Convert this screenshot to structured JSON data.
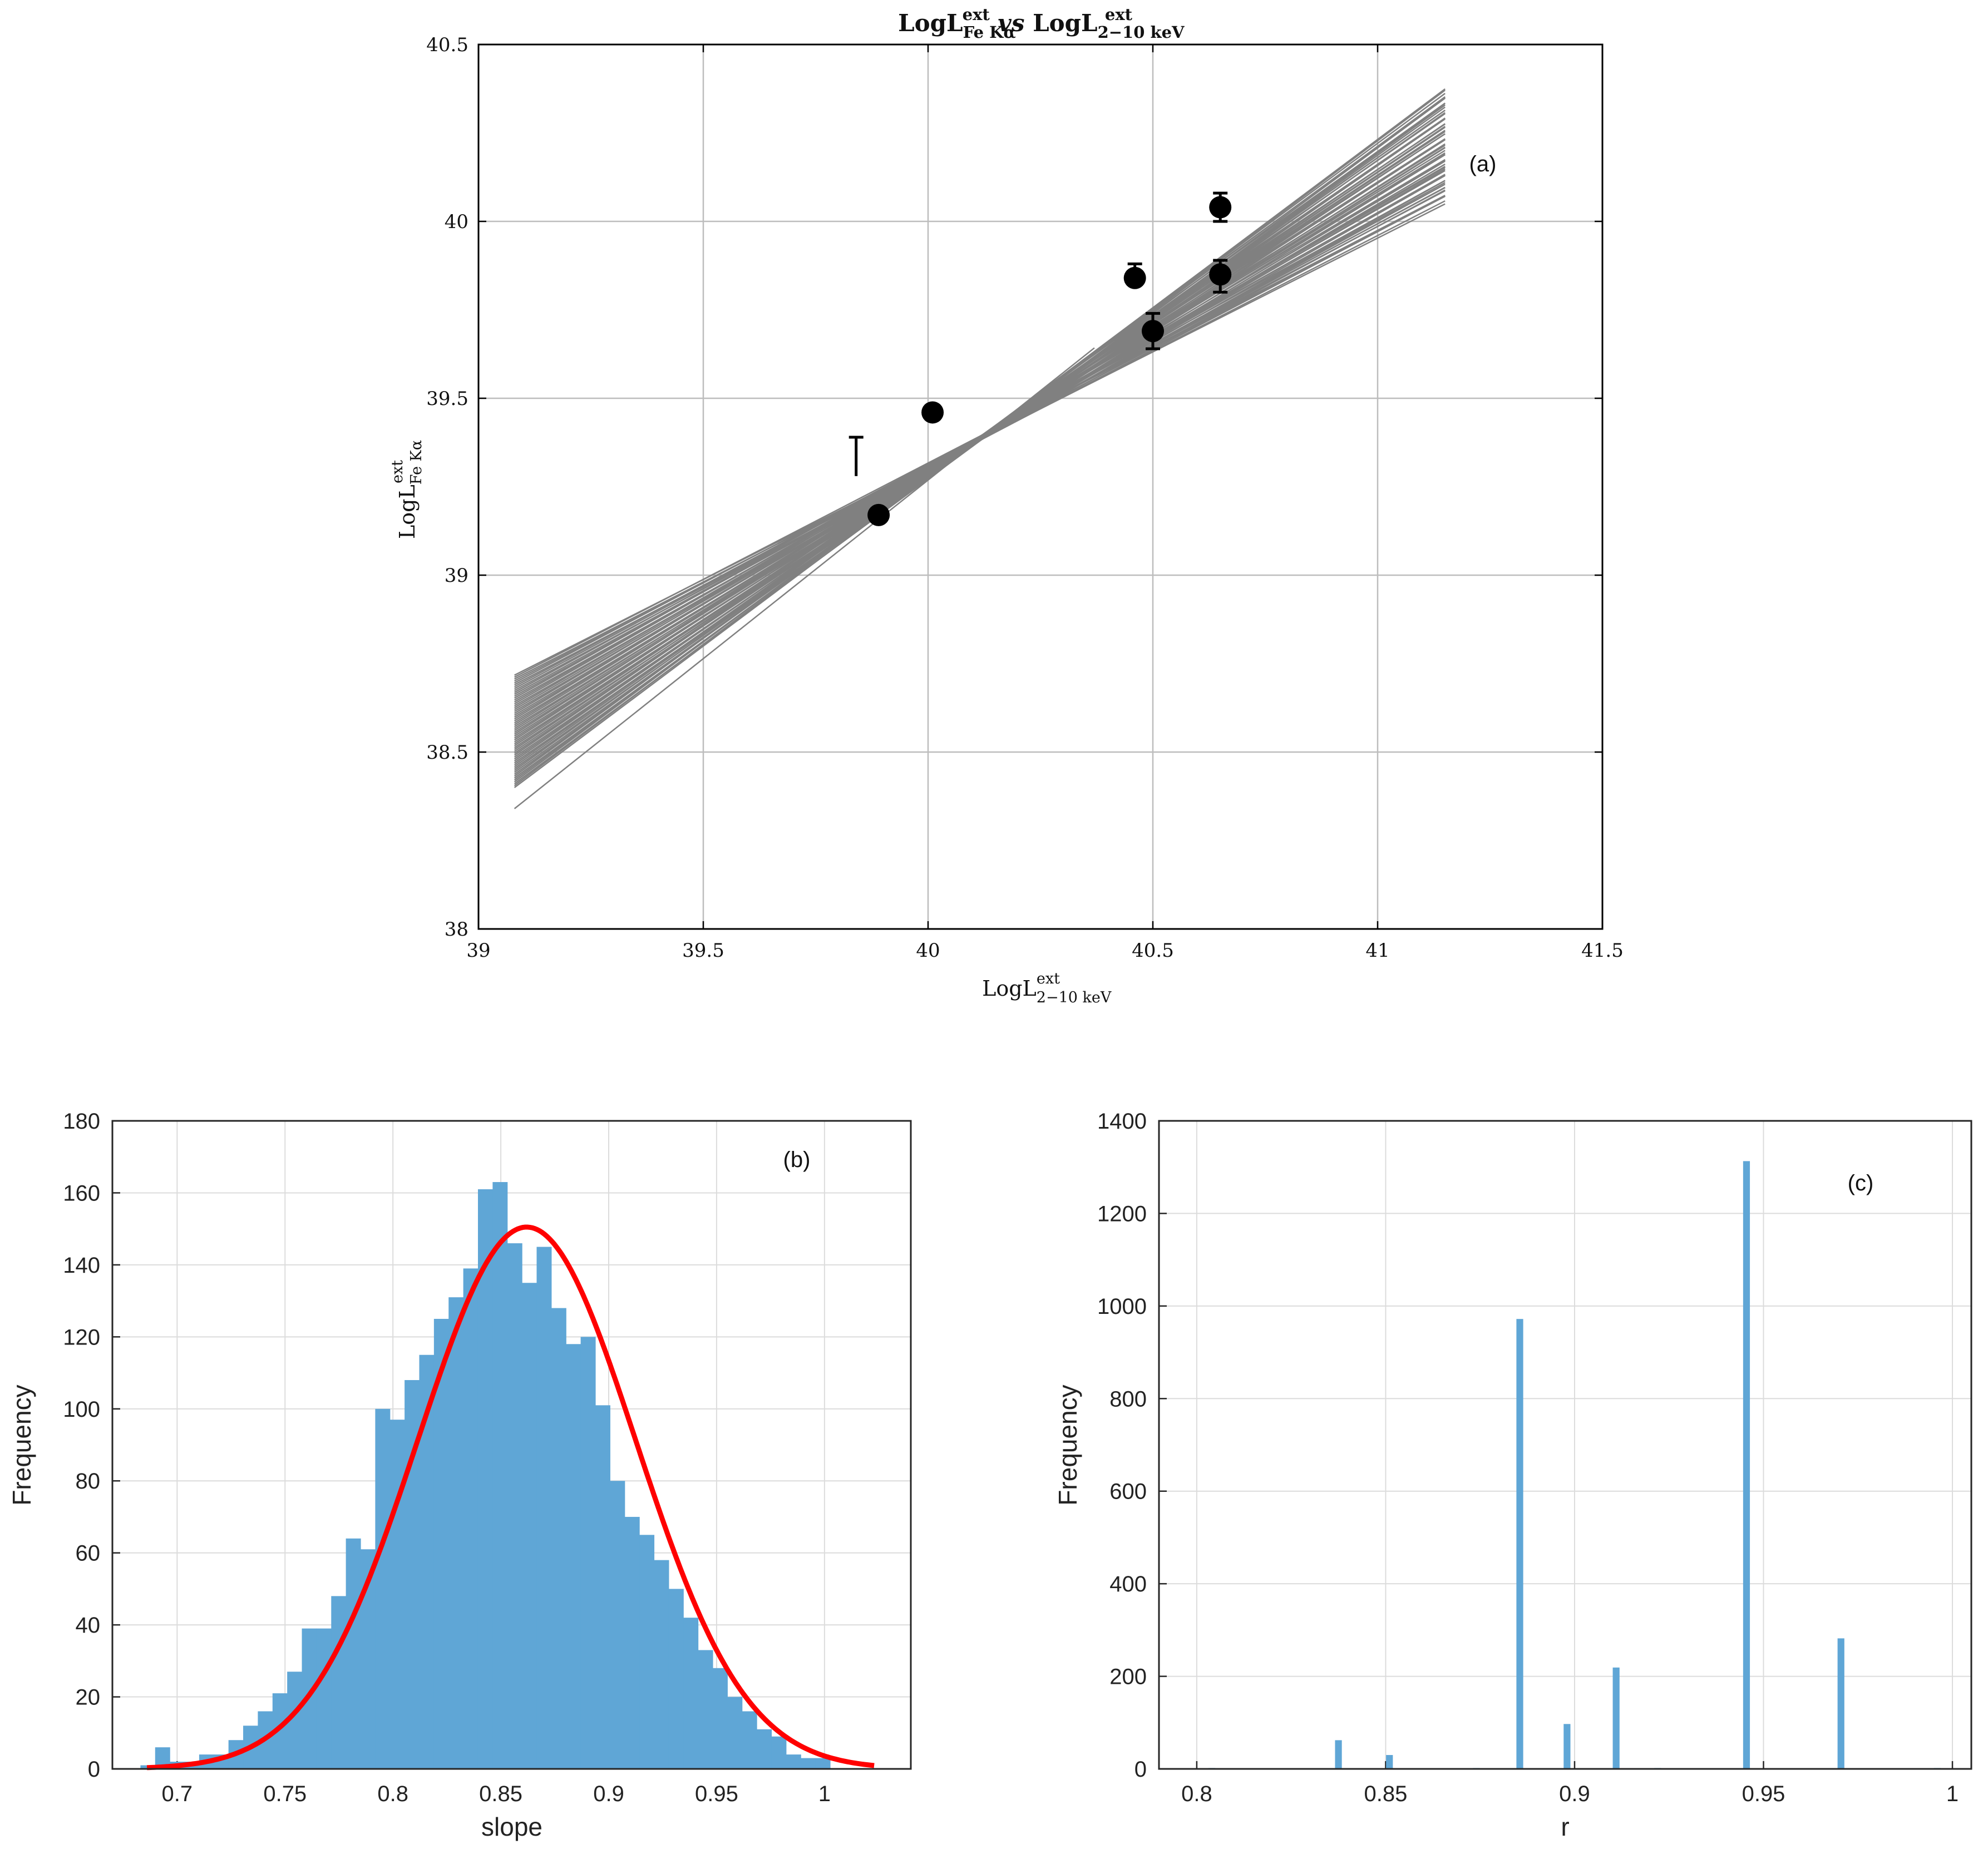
{
  "chart_data": [
    {
      "panel": "(a)",
      "type": "scatter",
      "title_parts": {
        "l1": "LogL",
        "sup1": "ext",
        "sub1": "Fe Kα",
        "vs": "vs",
        "l2": "LogL",
        "sup2": "ext",
        "sub2": "2−10 keV"
      },
      "xlabel_parts": {
        "base": "LogL",
        "sup": "ext",
        "sub": "2−10 keV"
      },
      "ylabel_parts": {
        "base": "LogL",
        "sup": "ext",
        "sub": "Fe Kα"
      },
      "xlim": [
        39,
        41.5
      ],
      "ylim": [
        38,
        40.5
      ],
      "xticks": [
        "39",
        "39.5",
        "40",
        "40.5",
        "41",
        "41.5"
      ],
      "yticks": [
        "38",
        "38.5",
        "39",
        "39.5",
        "40",
        "40.5"
      ],
      "grid": true,
      "points": [
        {
          "x": 39.84,
          "y": 39.28,
          "err_up": 0.11,
          "err_down": 0.0,
          "hidden": true
        },
        {
          "x": 39.89,
          "y": 39.17,
          "err_up": 0.0,
          "err_down": 0.0
        },
        {
          "x": 40.01,
          "y": 39.46,
          "err_up": 0.0,
          "err_down": 0.0
        },
        {
          "x": 40.46,
          "y": 39.84,
          "err_up": 0.04,
          "err_down": 0.0
        },
        {
          "x": 40.5,
          "y": 39.69,
          "err_up": 0.05,
          "err_down": 0.05
        },
        {
          "x": 40.65,
          "y": 40.04,
          "err_up": 0.04,
          "err_down": 0.04
        },
        {
          "x": 40.65,
          "y": 39.85,
          "err_up": 0.04,
          "err_down": 0.05
        }
      ],
      "fit_lines": {
        "count": 60,
        "x_range": [
          39.08,
          41.15
        ],
        "pivot_x": 40.12,
        "pivot_y": 39.39,
        "y_at_start_range": [
          38.34,
          38.72
        ],
        "color": "#808080"
      }
    },
    {
      "panel": "(b)",
      "type": "bar",
      "xlabel": "slope",
      "ylabel": "Frequency",
      "xlim": [
        0.67,
        1.04
      ],
      "ylim": [
        0,
        180
      ],
      "xticks": [
        "0.7",
        "0.75",
        "0.8",
        "0.85",
        "0.9",
        "0.95",
        "1"
      ],
      "yticks": [
        "0",
        "20",
        "40",
        "60",
        "80",
        "100",
        "120",
        "140",
        "160",
        "180"
      ],
      "bin_start": 0.683,
      "bin_width": 0.0068,
      "values": [
        1,
        6,
        2,
        2,
        4,
        4,
        8,
        12,
        16,
        21,
        27,
        39,
        39,
        48,
        64,
        61,
        100,
        97,
        108,
        115,
        125,
        131,
        139,
        161,
        163,
        146,
        135,
        145,
        128,
        118,
        120,
        101,
        80,
        70,
        65,
        58,
        50,
        42,
        33,
        28,
        20,
        16,
        11,
        9,
        4,
        3,
        3
      ],
      "fit_curve": {
        "type": "normal",
        "peak": 150.5,
        "mean": 0.862,
        "sigma": 0.0505,
        "color": "#ff0000"
      },
      "bar_color": "#5fa6d6",
      "grid": true
    },
    {
      "panel": "(c)",
      "type": "bar",
      "xlabel": "r",
      "ylabel": "Frequency",
      "xlim": [
        0.79,
        1.005
      ],
      "ylim": [
        0,
        1400
      ],
      "xticks": [
        "0.8",
        "0.85",
        "0.9",
        "0.95",
        "1"
      ],
      "yticks": [
        "0",
        "200",
        "400",
        "600",
        "800",
        "1000",
        "1200",
        "1400"
      ],
      "bar_width": 0.0018,
      "bars": [
        {
          "x": 0.804,
          "y": 2
        },
        {
          "x": 0.8375,
          "y": 62
        },
        {
          "x": 0.851,
          "y": 30
        },
        {
          "x": 0.874,
          "y": 2
        },
        {
          "x": 0.8855,
          "y": 972
        },
        {
          "x": 0.898,
          "y": 97
        },
        {
          "x": 0.911,
          "y": 219
        },
        {
          "x": 0.922,
          "y": 2
        },
        {
          "x": 0.9455,
          "y": 1313
        },
        {
          "x": 0.9705,
          "y": 282
        },
        {
          "x": 0.996,
          "y": 2
        }
      ],
      "bar_color": "#5fa6d6",
      "grid": true
    }
  ]
}
